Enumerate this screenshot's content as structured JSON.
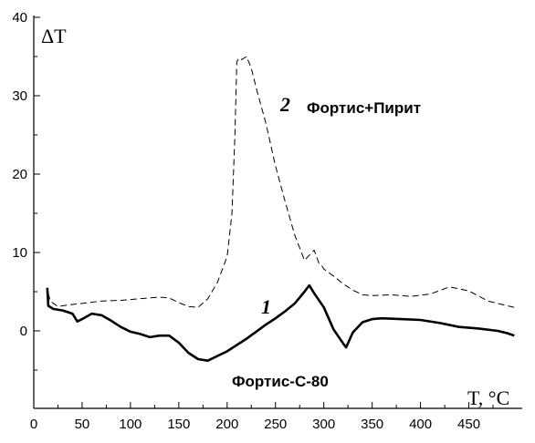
{
  "chart_data": {
    "type": "line",
    "xlabel": "T, °C",
    "ylabel": "ΔT",
    "xlim": [
      0,
      500
    ],
    "ylim": [
      -10,
      40
    ],
    "x_ticks": [
      0,
      50,
      100,
      150,
      200,
      250,
      300,
      350,
      400,
      450
    ],
    "y_ticks": [
      0,
      10,
      20,
      30,
      40
    ],
    "grid": false,
    "series": [
      {
        "name": "Фортис-С-80",
        "number": "1",
        "style": "solid-thick",
        "color": "#000000",
        "x": [
          14,
          15,
          20,
          30,
          40,
          45,
          50,
          60,
          70,
          80,
          90,
          100,
          110,
          120,
          130,
          140,
          150,
          160,
          170,
          180,
          190,
          200,
          210,
          220,
          230,
          240,
          250,
          260,
          270,
          280,
          285,
          290,
          300,
          310,
          320,
          323,
          330,
          340,
          350,
          360,
          380,
          400,
          420,
          440,
          460,
          480,
          490,
          497
        ],
        "y": [
          5.5,
          3.2,
          2.8,
          2.6,
          2.2,
          1.2,
          1.5,
          2.2,
          2.0,
          1.3,
          0.5,
          -0.1,
          -0.4,
          -0.8,
          -0.6,
          -0.6,
          -1.5,
          -2.8,
          -3.6,
          -3.8,
          -3.2,
          -2.6,
          -1.8,
          -1.0,
          -0.1,
          0.8,
          1.6,
          2.5,
          3.5,
          5.0,
          5.8,
          4.8,
          3.0,
          0.2,
          -1.6,
          -2.1,
          -0.2,
          1.1,
          1.5,
          1.6,
          1.5,
          1.4,
          1.0,
          0.5,
          0.3,
          0.0,
          -0.3,
          -0.6
        ]
      },
      {
        "name": "Фортис+Пирит",
        "number": "2",
        "style": "dashed",
        "color": "#000000",
        "x": [
          15,
          17,
          25,
          35,
          50,
          70,
          90,
          110,
          130,
          140,
          150,
          160,
          170,
          180,
          190,
          200,
          205,
          208,
          210,
          212,
          215,
          220,
          225,
          230,
          240,
          250,
          260,
          270,
          280,
          290,
          295,
          298,
          300,
          310,
          320,
          330,
          340,
          350,
          370,
          390,
          410,
          430,
          450,
          470,
          490,
          497
        ],
        "y": [
          4.8,
          3.8,
          3.1,
          3.3,
          3.5,
          3.8,
          3.9,
          4.1,
          4.3,
          4.2,
          3.6,
          3.1,
          3.0,
          4.1,
          6.2,
          9.5,
          15.0,
          25.0,
          34.3,
          34.8,
          34.6,
          35.0,
          33.5,
          31.0,
          26.5,
          21.0,
          16.5,
          12.2,
          9.0,
          10.3,
          8.6,
          8.3,
          7.9,
          7.0,
          6.0,
          5.2,
          4.6,
          4.5,
          4.6,
          4.4,
          4.7,
          5.6,
          5.1,
          3.8,
          3.2,
          3.0
        ]
      }
    ]
  }
}
